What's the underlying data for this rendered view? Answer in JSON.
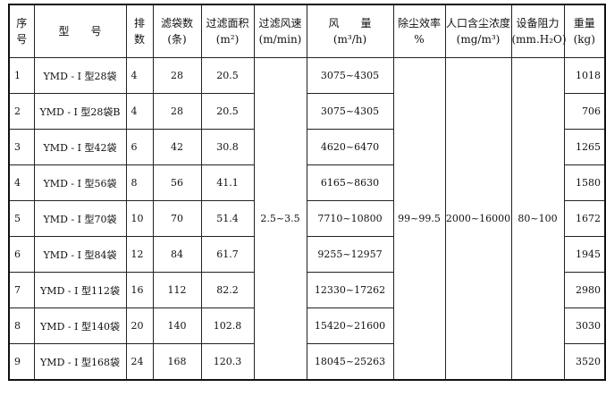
{
  "headers": [
    {
      "line1": "序",
      "line2": "号"
    },
    {
      "line1": "型　　号",
      "line2": ""
    },
    {
      "line1": "排",
      "line2": "数"
    },
    {
      "line1": "滤袋数",
      "line2": "(条)"
    },
    {
      "line1": "过滤面积",
      "line2": "(m²)"
    },
    {
      "line1": "过滤风速",
      "line2": "(m/min)"
    },
    {
      "line1": "风　　量",
      "line2": "(m³/h)"
    },
    {
      "line1": "除尘效率",
      "line2": "%"
    },
    {
      "line1": "人口含尘浓度",
      "line2": "(mg/m³)"
    },
    {
      "line1": "设备阻力",
      "line2": "(mm.H₂O)"
    },
    {
      "line1": "重量",
      "line2": "(kg)"
    }
  ],
  "shared": {
    "filter_speed": "2.5~3.5",
    "efficiency": "99~99.5",
    "inlet_concentration": "2000~16000",
    "resistance": "80~100"
  },
  "rows": [
    {
      "no": "1",
      "model": "YMD - I 型28袋",
      "rows": "4",
      "bags": "28",
      "area": "20.5",
      "airflow": "3075~4305",
      "weight": "1018"
    },
    {
      "no": "2",
      "model": "YMD - I 型28袋B",
      "rows": "4",
      "bags": "28",
      "area": "20.5",
      "airflow": "3075~4305",
      "weight": "706"
    },
    {
      "no": "3",
      "model": "YMD - I 型42袋",
      "rows": "6",
      "bags": "42",
      "area": "30.8",
      "airflow": "4620~6470",
      "weight": "1265"
    },
    {
      "no": "4",
      "model": "YMD - I 型56袋",
      "rows": "8",
      "bags": "56",
      "area": "41.1",
      "airflow": "6165~8630",
      "weight": "1580"
    },
    {
      "no": "5",
      "model": "YMD - I 型70袋",
      "rows": "10",
      "bags": "70",
      "area": "51.4",
      "airflow": "7710~10800",
      "weight": "1672"
    },
    {
      "no": "6",
      "model": "YMD - I 型84袋",
      "rows": "12",
      "bags": "84",
      "area": "61.7",
      "airflow": "9255~12957",
      "weight": "1945"
    },
    {
      "no": "7",
      "model": "YMD - I 型112袋",
      "rows": "16",
      "bags": "112",
      "area": "82.2",
      "airflow": "12330~17262",
      "weight": "2980"
    },
    {
      "no": "8",
      "model": "YMD - I 型140袋",
      "rows": "20",
      "bags": "140",
      "area": "102.8",
      "airflow": "15420~21600",
      "weight": "3030"
    },
    {
      "no": "9",
      "model": "YMD - I 型168袋",
      "rows": "24",
      "bags": "168",
      "area": "120.3",
      "airflow": "18045~25263",
      "weight": "3520"
    }
  ]
}
